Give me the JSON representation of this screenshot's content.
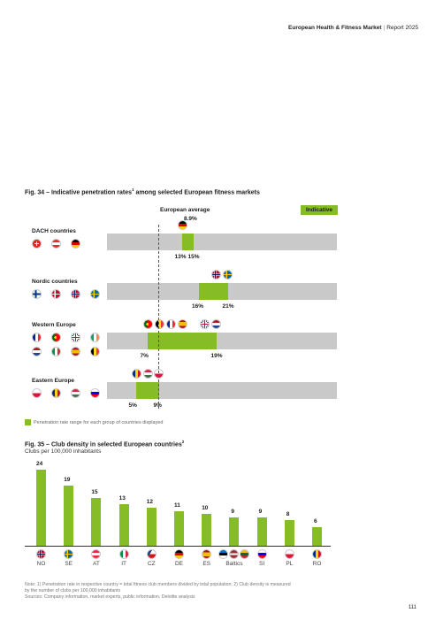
{
  "header": {
    "title": "European Health & Fitness Market",
    "subtitle": "Report 2025"
  },
  "fig34": {
    "title": "Fig. 34 – Indicative penetration rates",
    "title_sup": "1",
    "title_rest": " among selected European fitness markets",
    "badge": "Indicative",
    "avg_label": "European average",
    "avg_value_label": "8.9%",
    "legend": "Penetration rate range for each group of countries displayed",
    "chart_data": {
      "type": "bar",
      "subtype": "range",
      "european_average": 8.9,
      "xlim": [
        0,
        40
      ],
      "groups": [
        {
          "name": "DACH countries",
          "low": 13,
          "high": 15,
          "low_label": "13%",
          "high_label": "15%",
          "flags": [
            "ch",
            "at",
            "de"
          ],
          "bar_flags_low": [
            "de"
          ],
          "bar_flags_high": []
        },
        {
          "name": "Nordic countries",
          "low": 16,
          "high": 21,
          "low_label": "16%",
          "high_label": "21%",
          "flags": [
            "fi",
            "dk",
            "no",
            "se"
          ],
          "bar_flags_low": [],
          "bar_flags_high": [
            "no",
            "se"
          ]
        },
        {
          "name": "Western Europe",
          "low": 7,
          "high": 19,
          "low_label": "7%",
          "high_label": "19%",
          "flags": [
            "fr",
            "pt",
            "gb",
            "ie",
            "nl",
            "it",
            "es",
            "be"
          ],
          "bar_flags_low": [
            "pt",
            "be",
            "fr",
            "es"
          ],
          "bar_flags_high": [
            "gb",
            "nl"
          ]
        },
        {
          "name": "Eastern Europe",
          "low": 5,
          "high": 9,
          "low_label": "5%",
          "high_label": "9%",
          "flags": [
            "pl",
            "ro",
            "hu",
            "si"
          ],
          "bar_flags_low": [
            "ro",
            "hu"
          ],
          "bar_flags_high": [
            "pl"
          ]
        }
      ]
    }
  },
  "fig35": {
    "title": "Fig. 35 – Club density in selected European countries",
    "title_sup": "2",
    "subtitle": "Clubs per 100,000 inhabitants",
    "chart_data": {
      "type": "bar",
      "categories": [
        "NO",
        "SE",
        "AT",
        "IT",
        "CZ",
        "DE",
        "ES",
        "Baltics",
        "SI",
        "PL",
        "RO"
      ],
      "values": [
        24,
        19,
        15,
        13,
        12,
        11,
        10,
        9,
        9,
        8,
        6
      ],
      "flags": [
        [
          "no"
        ],
        [
          "se"
        ],
        [
          "at"
        ],
        [
          "it"
        ],
        [
          "cz"
        ],
        [
          "de"
        ],
        [
          "es"
        ],
        [
          "ee",
          "lv",
          "lt"
        ],
        [
          "si"
        ],
        [
          "pl"
        ],
        [
          "ro"
        ]
      ],
      "ylim": [
        0,
        26
      ],
      "bar_color": "#86bc25"
    }
  },
  "notes": [
    "Note: 1) Penetration rate in respective country = total fitness club members divided by total population; 2) Club density is measured",
    "by the number of clubs per 100,000 inhabitants",
    "Sources: Company information, market experts, public information, Deloitte analysis"
  ],
  "page_number": "111",
  "colors": {
    "accent": "#86bc25",
    "bar_bg": "#c9c9c9"
  }
}
